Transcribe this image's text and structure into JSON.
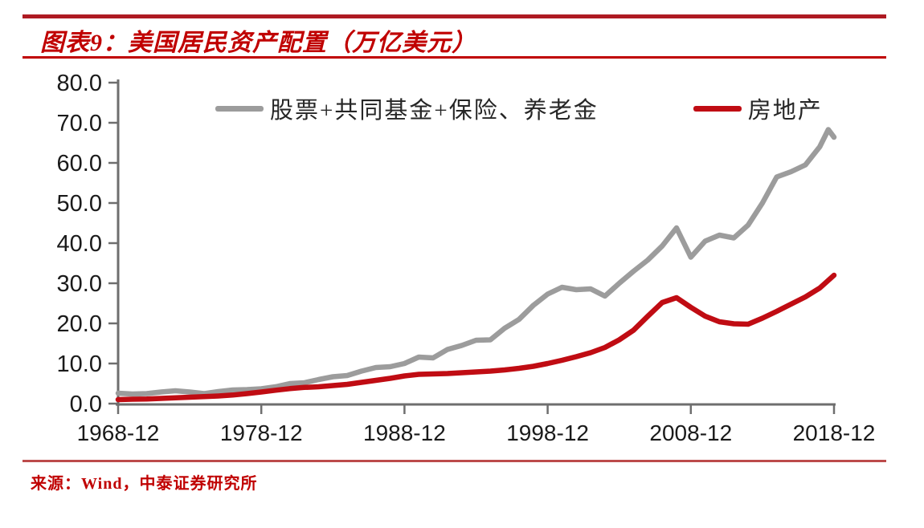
{
  "header": {
    "title": "图表9：美国居民资产配置（万亿美元）"
  },
  "source": {
    "text": "来源：Wind，中泰证券研究所"
  },
  "colors": {
    "accent_red": "#c00000",
    "rule_top": "#ae1a22",
    "rule_bottom": "#bc4b4b",
    "line_gray": "#9c9c9c",
    "line_red": "#c00c13",
    "axis_gray": "#6e6e6e",
    "tick_text": "#1a1a1a"
  },
  "chart_data": {
    "type": "line",
    "title": "美国居民资产配置（万亿美元）",
    "xlabel": "",
    "ylabel": "",
    "grid": false,
    "legend_position": "inside-top",
    "ylim": [
      0,
      80
    ],
    "y_tick_labels": [
      "80.0",
      "70.0",
      "60.0",
      "50.0",
      "40.0",
      "30.0",
      "20.0",
      "10.0",
      "0.0"
    ],
    "y_tick_values": [
      80,
      70,
      60,
      50,
      40,
      30,
      20,
      10,
      0
    ],
    "x_tick_labels": [
      "1968-12",
      "1978-12",
      "1988-12",
      "1998-12",
      "2008-12",
      "2018-12"
    ],
    "x_tick_years": [
      1968,
      1978,
      1988,
      1998,
      2008,
      2018
    ],
    "x_note": "x values are years of December observations (e.g. 1968 = 1968-12)",
    "series": [
      {
        "name": "股票+共同基金+保险、养老金",
        "color": "#9c9c9c",
        "x": [
          1968,
          1969,
          1970,
          1971,
          1972,
          1973,
          1974,
          1975,
          1976,
          1977,
          1978,
          1979,
          1980,
          1981,
          1982,
          1983,
          1984,
          1985,
          1986,
          1987,
          1988,
          1989,
          1990,
          1991,
          1992,
          1993,
          1994,
          1995,
          1996,
          1997,
          1998,
          1999,
          2000,
          2001,
          2002,
          2003,
          2004,
          2005,
          2006,
          2007,
          2008,
          2009,
          2010,
          2011,
          2012,
          2013,
          2014,
          2015,
          2016,
          2017,
          2017.6,
          2018
        ],
        "values": [
          2.6,
          2.4,
          2.5,
          2.9,
          3.2,
          2.9,
          2.5,
          3.0,
          3.4,
          3.5,
          3.7,
          4.2,
          5.0,
          5.2,
          6.0,
          6.7,
          7.0,
          8.1,
          9.0,
          9.2,
          10.0,
          11.6,
          11.4,
          13.5,
          14.5,
          15.8,
          15.9,
          18.8,
          21.0,
          24.5,
          27.3,
          29.0,
          28.4,
          28.6,
          26.8,
          30.0,
          33.0,
          35.8,
          39.3,
          43.8,
          36.5,
          40.5,
          42.0,
          41.3,
          44.5,
          50.0,
          56.5,
          57.8,
          59.5,
          64.0,
          68.3,
          66.4
        ]
      },
      {
        "name": "房地产",
        "color": "#c00c13",
        "x": [
          1968,
          1969,
          1970,
          1971,
          1972,
          1973,
          1974,
          1975,
          1976,
          1977,
          1978,
          1979,
          1980,
          1981,
          1982,
          1983,
          1984,
          1985,
          1986,
          1987,
          1988,
          1989,
          1990,
          1991,
          1992,
          1993,
          1994,
          1995,
          1996,
          1997,
          1998,
          1999,
          2000,
          2001,
          2002,
          2003,
          2004,
          2005,
          2006,
          2007,
          2008,
          2009,
          2010,
          2011,
          2012,
          2013,
          2014,
          2015,
          2016,
          2017,
          2018
        ],
        "values": [
          1.0,
          1.1,
          1.15,
          1.3,
          1.45,
          1.6,
          1.75,
          1.9,
          2.15,
          2.5,
          2.9,
          3.35,
          3.75,
          4.05,
          4.2,
          4.5,
          4.8,
          5.3,
          5.8,
          6.3,
          6.9,
          7.3,
          7.4,
          7.5,
          7.7,
          7.9,
          8.1,
          8.4,
          8.8,
          9.3,
          10.0,
          10.8,
          11.7,
          12.7,
          14.0,
          15.9,
          18.3,
          21.8,
          25.2,
          26.4,
          24.0,
          21.8,
          20.4,
          19.9,
          19.8,
          21.3,
          23.0,
          24.8,
          26.6,
          28.8,
          32.0
        ]
      }
    ]
  }
}
